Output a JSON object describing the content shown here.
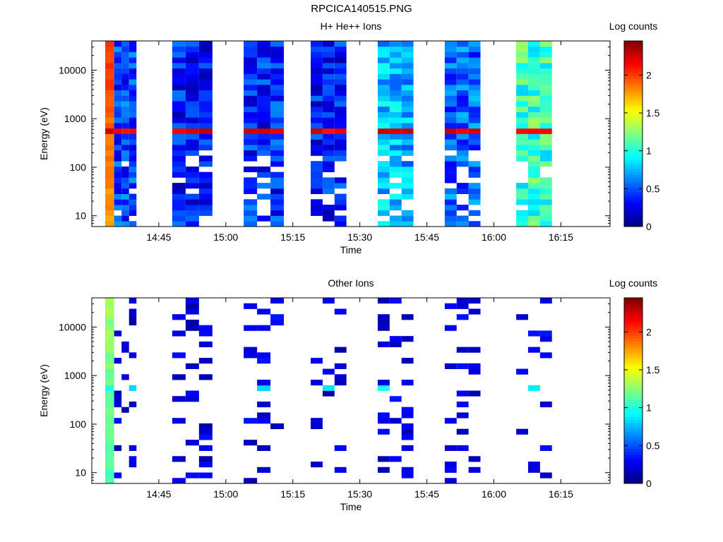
{
  "figure_title": "RPCICA140515.PNG",
  "chart_data": [
    {
      "type": "heatmap",
      "title": "H+ He++ Ions",
      "xlabel": "Time",
      "ylabel": "Energy (eV)",
      "y_scale": "log",
      "ylim": [
        6,
        40000
      ],
      "x_range": [
        "14:30",
        "16:26"
      ],
      "x_ticks": [
        "14:45",
        "15:00",
        "15:15",
        "15:30",
        "15:45",
        "16:00",
        "16:15"
      ],
      "y_ticks": [
        "10",
        "100",
        "1000",
        "10000"
      ],
      "colorbar": {
        "label": "Log counts",
        "range": [
          0,
          2.45
        ],
        "ticks": [
          "0",
          "0.5",
          "1",
          "1.5",
          "2"
        ]
      },
      "grid": false,
      "colormap": "jet",
      "segments": [
        {
          "start": "14:33",
          "end": "14:35",
          "level": 2.05,
          "column": "leftmost",
          "cutoff_ev": 6
        },
        {
          "start": "14:35",
          "end": "14:40",
          "level": 0.45,
          "cutoff_ev": 6
        },
        {
          "start": "14:48",
          "end": "14:57",
          "level": 0.35,
          "cutoff_ev": 6
        },
        {
          "start": "15:04",
          "end": "15:13",
          "level": 0.4,
          "cutoff_ev": 6
        },
        {
          "start": "15:19",
          "end": "15:27",
          "level": 0.35,
          "cutoff_ev": 6
        },
        {
          "start": "15:34",
          "end": "15:42",
          "level": 0.75,
          "cutoff_ev": 6
        },
        {
          "start": "15:49",
          "end": "15:57",
          "level": 0.55,
          "cutoff_ev": 6
        },
        {
          "start": "16:05",
          "end": "16:13",
          "level": 1.05,
          "cutoff_ev": 6
        }
      ],
      "band": {
        "energy_ev": 620,
        "level": 2.2
      }
    },
    {
      "type": "heatmap",
      "title": "Other Ions",
      "xlabel": "Time",
      "ylabel": "Energy (eV)",
      "y_scale": "log",
      "ylim": [
        6,
        40000
      ],
      "x_range": [
        "14:30",
        "16:26"
      ],
      "x_ticks": [
        "14:45",
        "15:00",
        "15:15",
        "15:30",
        "15:45",
        "16:00",
        "16:15"
      ],
      "y_ticks": [
        "10",
        "100",
        "1000",
        "10000"
      ],
      "colorbar": {
        "label": "Log counts",
        "range": [
          0,
          2.45
        ],
        "ticks": [
          "0",
          "0.5",
          "1",
          "1.5",
          "2"
        ]
      },
      "grid": false,
      "colormap": "jet",
      "segments": [
        {
          "start": "14:33",
          "end": "14:35",
          "level": 1.3,
          "column": "leftmost",
          "cutoff_ev": 6
        },
        {
          "start": "14:35",
          "end": "14:40",
          "level": 0.1,
          "sparse": true
        },
        {
          "start": "14:48",
          "end": "14:57",
          "level": 0.1,
          "sparse": true
        },
        {
          "start": "15:04",
          "end": "15:13",
          "level": 0.1,
          "sparse": true
        },
        {
          "start": "15:19",
          "end": "15:27",
          "level": 0.1,
          "sparse": true
        },
        {
          "start": "15:34",
          "end": "15:42",
          "level": 0.1,
          "sparse": true
        },
        {
          "start": "15:49",
          "end": "15:57",
          "level": 0.1,
          "sparse": true
        },
        {
          "start": "16:05",
          "end": "16:13",
          "level": 0.15,
          "sparse": true
        }
      ],
      "band": {
        "energy_ev": 620,
        "level": 0.9
      }
    }
  ]
}
